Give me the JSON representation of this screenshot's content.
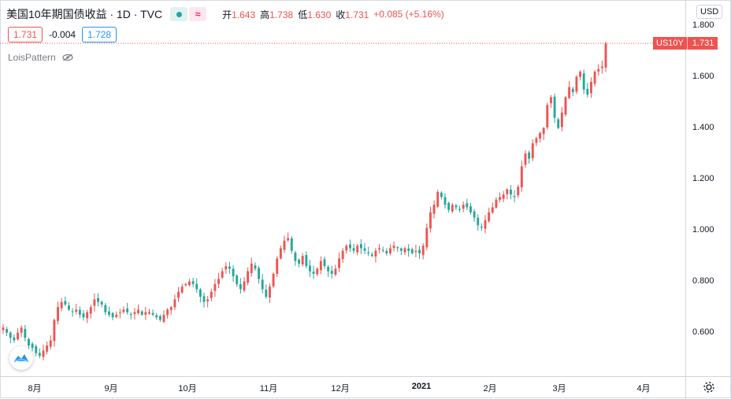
{
  "header": {
    "title": "美国10年期国债收益 · 1D · TVC",
    "ohlc": [
      {
        "label": "开",
        "value": "1.643"
      },
      {
        "label": "高",
        "value": "1.738"
      },
      {
        "label": "低",
        "value": "1.630"
      },
      {
        "label": "收",
        "value": "1.731"
      }
    ],
    "change": "+0.085 (+5.16%)",
    "bid": "1.731",
    "spread": "-0.004",
    "ask": "1.728",
    "indicator": "LoisPattern",
    "currency": "USD",
    "symbol": "US10Y",
    "last_price": "1.731"
  },
  "colors": {
    "up": "#26a69a",
    "down": "#ef5350",
    "accent": "#2196f3"
  },
  "icons": [
    "eye-off-icon",
    "tradingview-logo-icon",
    "settings-gear-icon",
    "quote-status-dot-icon",
    "wave-icon"
  ],
  "chart_data": {
    "type": "candlestick",
    "y_ticks": [
      "1.800",
      "1.600",
      "1.400",
      "1.200",
      "1.000",
      "0.800",
      "0.600"
    ],
    "x_ticks": [
      {
        "label": "8月",
        "bold": false
      },
      {
        "label": "9月",
        "bold": false
      },
      {
        "label": "10月",
        "bold": false
      },
      {
        "label": "11月",
        "bold": false
      },
      {
        "label": "12月",
        "bold": false
      },
      {
        "label": "2021",
        "bold": true
      },
      {
        "label": "2月",
        "bold": false
      },
      {
        "label": "3月",
        "bold": false
      },
      {
        "label": "4月",
        "bold": false
      }
    ],
    "ylim": [
      0.43,
      1.9
    ],
    "closes": [
      0.62,
      0.6,
      0.58,
      0.57,
      0.6,
      0.62,
      0.58,
      0.55,
      0.54,
      0.52,
      0.51,
      0.53,
      0.55,
      0.57,
      0.65,
      0.7,
      0.72,
      0.71,
      0.69,
      0.68,
      0.69,
      0.67,
      0.66,
      0.68,
      0.7,
      0.73,
      0.72,
      0.71,
      0.68,
      0.67,
      0.66,
      0.67,
      0.68,
      0.69,
      0.68,
      0.67,
      0.68,
      0.69,
      0.67,
      0.68,
      0.68,
      0.67,
      0.66,
      0.65,
      0.67,
      0.69,
      0.7,
      0.73,
      0.76,
      0.78,
      0.79,
      0.8,
      0.79,
      0.77,
      0.74,
      0.72,
      0.73,
      0.76,
      0.79,
      0.81,
      0.84,
      0.86,
      0.85,
      0.82,
      0.79,
      0.77,
      0.8,
      0.84,
      0.87,
      0.85,
      0.81,
      0.77,
      0.74,
      0.78,
      0.83,
      0.89,
      0.93,
      0.96,
      0.97,
      0.92,
      0.88,
      0.87,
      0.9,
      0.86,
      0.84,
      0.83,
      0.85,
      0.88,
      0.86,
      0.84,
      0.83,
      0.85,
      0.89,
      0.92,
      0.94,
      0.93,
      0.92,
      0.94,
      0.93,
      0.92,
      0.91,
      0.9,
      0.92,
      0.93,
      0.92,
      0.91,
      0.93,
      0.94,
      0.93,
      0.92,
      0.93,
      0.92,
      0.91,
      0.92,
      0.91,
      0.94,
      1.01,
      1.07,
      1.1,
      1.15,
      1.13,
      1.1,
      1.08,
      1.1,
      1.09,
      1.08,
      1.1,
      1.09,
      1.07,
      1.05,
      1.02,
      1.01,
      1.04,
      1.07,
      1.09,
      1.12,
      1.13,
      1.14,
      1.16,
      1.14,
      1.13,
      1.17,
      1.25,
      1.3,
      1.28,
      1.34,
      1.36,
      1.38,
      1.4,
      1.49,
      1.52,
      1.44,
      1.4,
      1.46,
      1.52,
      1.56,
      1.54,
      1.6,
      1.62,
      1.55,
      1.53,
      1.58,
      1.62,
      1.63,
      1.64,
      1.73
    ]
  }
}
